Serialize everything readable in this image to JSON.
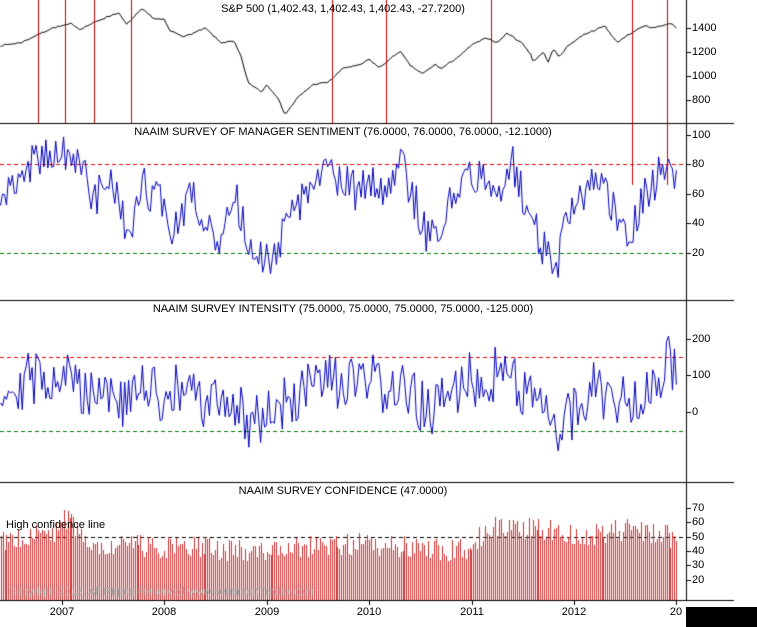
{
  "footer": {
    "copyright": "Copyright 2013. All Rights Reserved  www.sentimenTrader.com"
  },
  "annotations": {
    "high_confidence_line": "High confidence line"
  },
  "x_axis": {
    "year_labels": [
      "2007",
      "2008",
      "2009",
      "2010",
      "2011",
      "2012",
      "20"
    ]
  },
  "colors": {
    "sp500_line": "#000000",
    "sentiment_line": "#0000bb",
    "intensity_line": "#0000bb",
    "confidence_bars": "#cc3333",
    "signal_line": "#cc0000",
    "upper_threshold": "#ee0000",
    "lower_threshold": "#007700",
    "confidence_threshold": "#000000"
  },
  "chart_data": [
    {
      "type": "line",
      "title": "S&P 500 (1,402.43, 1,402.43, 1,402.43, -27.7200)",
      "color": "#000000",
      "yticks": [
        800,
        1000,
        1200,
        1400
      ],
      "ylim": [
        610,
        1635
      ],
      "x_range": [
        2006.4,
        2013.0
      ],
      "noise_amp": 6,
      "clamp": [
        660,
        1572
      ],
      "keypoints": [
        [
          2006.4,
          1255
        ],
        [
          2006.6,
          1280
        ],
        [
          2006.9,
          1400
        ],
        [
          2007.1,
          1438
        ],
        [
          2007.17,
          1390
        ],
        [
          2007.4,
          1480
        ],
        [
          2007.55,
          1530
        ],
        [
          2007.63,
          1430
        ],
        [
          2007.78,
          1560
        ],
        [
          2007.9,
          1480
        ],
        [
          2008.0,
          1470
        ],
        [
          2008.05,
          1380
        ],
        [
          2008.2,
          1330
        ],
        [
          2008.4,
          1400
        ],
        [
          2008.55,
          1280
        ],
        [
          2008.68,
          1290
        ],
        [
          2008.75,
          1160
        ],
        [
          2008.82,
          940
        ],
        [
          2008.9,
          900
        ],
        [
          2008.95,
          870
        ],
        [
          2009.0,
          930
        ],
        [
          2009.1,
          830
        ],
        [
          2009.18,
          680
        ],
        [
          2009.3,
          820
        ],
        [
          2009.45,
          930
        ],
        [
          2009.6,
          950
        ],
        [
          2009.75,
          1070
        ],
        [
          2009.9,
          1090
        ],
        [
          2010.0,
          1140
        ],
        [
          2010.1,
          1070
        ],
        [
          2010.3,
          1210
        ],
        [
          2010.4,
          1090
        ],
        [
          2010.52,
          1020
        ],
        [
          2010.65,
          1100
        ],
        [
          2010.7,
          1060
        ],
        [
          2010.9,
          1180
        ],
        [
          2011.0,
          1260
        ],
        [
          2011.15,
          1320
        ],
        [
          2011.25,
          1280
        ],
        [
          2011.35,
          1360
        ],
        [
          2011.5,
          1270
        ],
        [
          2011.58,
          1180
        ],
        [
          2011.6,
          1120
        ],
        [
          2011.7,
          1200
        ],
        [
          2011.75,
          1120
        ],
        [
          2011.8,
          1230
        ],
        [
          2011.85,
          1160
        ],
        [
          2011.95,
          1260
        ],
        [
          2012.1,
          1350
        ],
        [
          2012.25,
          1400
        ],
        [
          2012.3,
          1420
        ],
        [
          2012.42,
          1280
        ],
        [
          2012.5,
          1330
        ],
        [
          2012.6,
          1380
        ],
        [
          2012.7,
          1420
        ],
        [
          2012.75,
          1400
        ],
        [
          2012.85,
          1420
        ],
        [
          2012.95,
          1440
        ],
        [
          2013.0,
          1402
        ]
      ],
      "vlines": {
        "color": "#cc0000",
        "span": [
          0,
          1
        ],
        "dates": [
          2006.77,
          2007.03,
          2007.31,
          2007.67,
          2009.64,
          2010.16,
          2011.19,
          2012.57,
          2012.91
        ]
      }
    },
    {
      "type": "line",
      "title": "NAAIM SURVEY OF MANAGER SENTIMENT (76.0000, 76.0000, 76.0000, -12.1000)",
      "color": "#0000bb",
      "yticks": [
        20,
        40,
        60,
        80,
        100
      ],
      "ylim": [
        -12,
        108
      ],
      "x_range": [
        2006.4,
        2013.0
      ],
      "noise_amp": 14,
      "clamp": [
        3,
        99
      ],
      "hlines": [
        {
          "value": 80,
          "color": "#ee0000"
        },
        {
          "value": 20,
          "color": "#007700"
        }
      ],
      "keypoints": [
        [
          2006.4,
          55
        ],
        [
          2006.6,
          75
        ],
        [
          2006.8,
          85
        ],
        [
          2007.0,
          88
        ],
        [
          2007.1,
          75
        ],
        [
          2007.2,
          85
        ],
        [
          2007.3,
          50
        ],
        [
          2007.45,
          75
        ],
        [
          2007.55,
          60
        ],
        [
          2007.65,
          22
        ],
        [
          2007.8,
          65
        ],
        [
          2007.95,
          55
        ],
        [
          2008.1,
          35
        ],
        [
          2008.25,
          60
        ],
        [
          2008.4,
          45
        ],
        [
          2008.55,
          25
        ],
        [
          2008.7,
          55
        ],
        [
          2008.85,
          20
        ],
        [
          2009.0,
          15
        ],
        [
          2009.15,
          30
        ],
        [
          2009.3,
          50
        ],
        [
          2009.45,
          65
        ],
        [
          2009.6,
          75
        ],
        [
          2009.75,
          70
        ],
        [
          2009.9,
          60
        ],
        [
          2010.0,
          70
        ],
        [
          2010.15,
          65
        ],
        [
          2010.3,
          80
        ],
        [
          2010.45,
          55
        ],
        [
          2010.55,
          35
        ],
        [
          2010.65,
          25
        ],
        [
          2010.8,
          55
        ],
        [
          2010.95,
          70
        ],
        [
          2011.1,
          75
        ],
        [
          2011.25,
          65
        ],
        [
          2011.4,
          80
        ],
        [
          2011.5,
          60
        ],
        [
          2011.6,
          40
        ],
        [
          2011.7,
          25
        ],
        [
          2011.85,
          15
        ],
        [
          2011.95,
          45
        ],
        [
          2012.1,
          60
        ],
        [
          2012.2,
          70
        ],
        [
          2012.3,
          65
        ],
        [
          2012.45,
          40
        ],
        [
          2012.55,
          35
        ],
        [
          2012.7,
          60
        ],
        [
          2012.8,
          70
        ],
        [
          2012.9,
          80
        ],
        [
          2013.0,
          76
        ]
      ],
      "vlines": {
        "color": "#cc0000",
        "span": [
          0,
          0.35
        ],
        "dates": [
          2012.57,
          2012.91
        ]
      }
    },
    {
      "type": "line",
      "title": "NAAIM SURVEY INTENSITY (75.0000, 75.0000, 75.0000, 75.0000, -125.000)",
      "color": "#0000bb",
      "yticks": [
        0,
        100,
        200
      ],
      "ylim": [
        -190,
        305
      ],
      "x_range": [
        2006.4,
        2013.0
      ],
      "noise_amp": 78,
      "clamp": [
        -152,
        260
      ],
      "hlines": [
        {
          "value": 150,
          "color": "#ee0000"
        },
        {
          "value": -50,
          "color": "#007700"
        }
      ],
      "keypoints": [
        [
          2006.4,
          70
        ],
        [
          2006.7,
          90
        ],
        [
          2007.0,
          110
        ],
        [
          2007.2,
          60
        ],
        [
          2007.4,
          80
        ],
        [
          2007.6,
          15
        ],
        [
          2007.8,
          70
        ],
        [
          2008.0,
          40
        ],
        [
          2008.2,
          60
        ],
        [
          2008.4,
          15
        ],
        [
          2008.6,
          40
        ],
        [
          2008.8,
          -20
        ],
        [
          2009.0,
          0
        ],
        [
          2009.2,
          20
        ],
        [
          2009.4,
          60
        ],
        [
          2009.6,
          80
        ],
        [
          2009.8,
          70
        ],
        [
          2010.0,
          80
        ],
        [
          2010.2,
          70
        ],
        [
          2010.4,
          40
        ],
        [
          2010.6,
          0
        ],
        [
          2010.8,
          50
        ],
        [
          2011.0,
          90
        ],
        [
          2011.2,
          100
        ],
        [
          2011.4,
          110
        ],
        [
          2011.6,
          30
        ],
        [
          2011.75,
          -30
        ],
        [
          2011.9,
          -40
        ],
        [
          2012.05,
          20
        ],
        [
          2012.2,
          70
        ],
        [
          2012.4,
          30
        ],
        [
          2012.6,
          45
        ],
        [
          2012.8,
          85
        ],
        [
          2012.93,
          150
        ],
        [
          2013.0,
          75
        ]
      ]
    },
    {
      "type": "bar",
      "title": "NAAIM SURVEY CONFIDENCE (47.0000)",
      "color": "#cc3333",
      "yticks": [
        20,
        30,
        40,
        50,
        60,
        70
      ],
      "ylim": [
        6,
        88
      ],
      "x_range": [
        2006.4,
        2013.0
      ],
      "noise_amp": 8,
      "clamp": [
        24,
        77
      ],
      "hlines": [
        {
          "value": 50,
          "color": "#000000"
        }
      ],
      "keypoints": [
        [
          2006.4,
          48
        ],
        [
          2006.7,
          50
        ],
        [
          2006.95,
          54
        ],
        [
          2007.05,
          64
        ],
        [
          2007.15,
          52
        ],
        [
          2007.3,
          46
        ],
        [
          2007.6,
          44
        ],
        [
          2008.0,
          43
        ],
        [
          2008.4,
          42
        ],
        [
          2008.8,
          40
        ],
        [
          2009.2,
          42
        ],
        [
          2009.6,
          44
        ],
        [
          2010.0,
          45
        ],
        [
          2010.4,
          43
        ],
        [
          2010.7,
          40
        ],
        [
          2010.95,
          42
        ],
        [
          2011.1,
          52
        ],
        [
          2011.3,
          58
        ],
        [
          2011.5,
          56
        ],
        [
          2011.7,
          55
        ],
        [
          2011.9,
          53
        ],
        [
          2012.1,
          50
        ],
        [
          2012.3,
          53
        ],
        [
          2012.5,
          55
        ],
        [
          2012.7,
          52
        ],
        [
          2012.9,
          51
        ],
        [
          2013.0,
          47
        ]
      ]
    }
  ]
}
